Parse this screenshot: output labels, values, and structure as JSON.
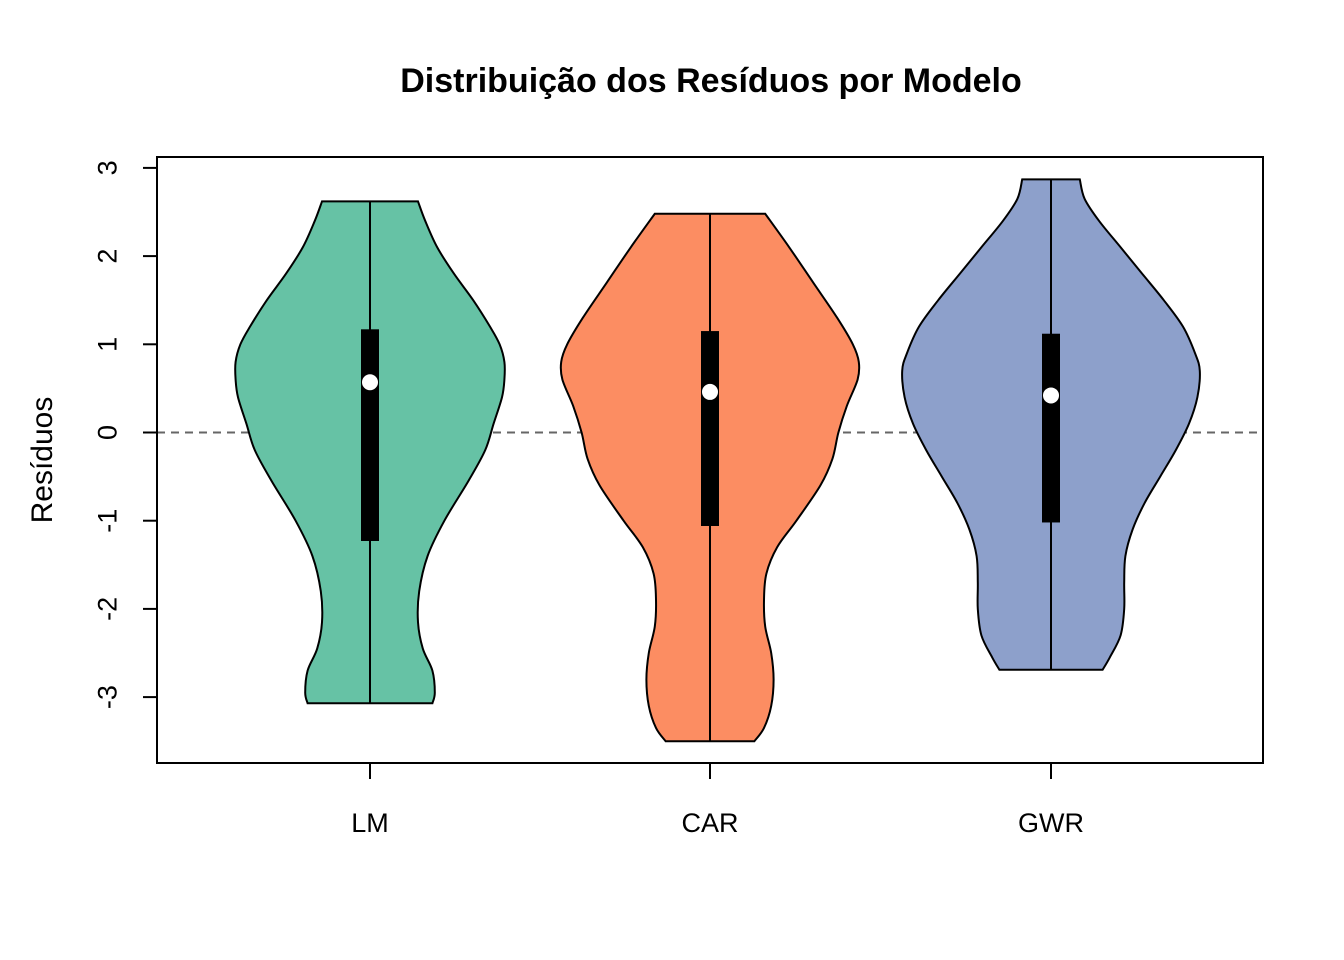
{
  "chart_data": {
    "type": "violin",
    "title": "Distribuição dos Resíduos por Modelo",
    "xlabel": "",
    "ylabel": "Resíduos",
    "categories": [
      "LM",
      "CAR",
      "GWR"
    ],
    "colors": [
      "#66c2a5",
      "#fc8d62",
      "#8da0cb"
    ],
    "ylim": [
      -3.75,
      3.13
    ],
    "yticks": [
      -3,
      -2,
      -1,
      0,
      1,
      2,
      3
    ],
    "ytick_labels": [
      "-3",
      "-2",
      "-1",
      "0",
      "1",
      "2",
      "3"
    ],
    "reference_line": {
      "y": 0,
      "style": "dashed",
      "color": "#666666"
    },
    "grid": false,
    "series": [
      {
        "category": "LM",
        "min": -3.07,
        "q1": -1.23,
        "median": 0.57,
        "q3": 1.17,
        "max": 2.62,
        "density_profile": [
          [
            -3.07,
            0.52
          ],
          [
            -2.95,
            0.54
          ],
          [
            -2.7,
            0.52
          ],
          [
            -2.45,
            0.44
          ],
          [
            -2.15,
            0.4
          ],
          [
            -1.8,
            0.41
          ],
          [
            -1.4,
            0.48
          ],
          [
            -1.0,
            0.62
          ],
          [
            -0.55,
            0.82
          ],
          [
            -0.2,
            0.96
          ],
          [
            0.1,
            1.03
          ],
          [
            0.4,
            1.1
          ],
          [
            0.6,
            1.12
          ],
          [
            0.8,
            1.12
          ],
          [
            1.0,
            1.08
          ],
          [
            1.2,
            1.0
          ],
          [
            1.5,
            0.86
          ],
          [
            1.8,
            0.7
          ],
          [
            2.1,
            0.56
          ],
          [
            2.4,
            0.46
          ],
          [
            2.62,
            0.4
          ]
        ]
      },
      {
        "category": "CAR",
        "min": -3.5,
        "q1": -1.06,
        "median": 0.46,
        "q3": 1.15,
        "max": 2.48,
        "density_profile": [
          [
            -3.5,
            0.37
          ],
          [
            -3.35,
            0.45
          ],
          [
            -3.1,
            0.51
          ],
          [
            -2.8,
            0.53
          ],
          [
            -2.5,
            0.51
          ],
          [
            -2.2,
            0.46
          ],
          [
            -1.9,
            0.45
          ],
          [
            -1.6,
            0.47
          ],
          [
            -1.3,
            0.56
          ],
          [
            -1.0,
            0.72
          ],
          [
            -0.6,
            0.92
          ],
          [
            -0.3,
            1.02
          ],
          [
            0.0,
            1.07
          ],
          [
            0.3,
            1.14
          ],
          [
            0.6,
            1.23
          ],
          [
            0.8,
            1.24
          ],
          [
            1.0,
            1.19
          ],
          [
            1.3,
            1.06
          ],
          [
            1.7,
            0.86
          ],
          [
            2.1,
            0.66
          ],
          [
            2.48,
            0.46
          ]
        ]
      },
      {
        "category": "GWR",
        "min": -2.69,
        "q1": -1.02,
        "median": 0.42,
        "q3": 1.12,
        "max": 2.87,
        "density_profile": [
          [
            -2.69,
            0.43
          ],
          [
            -2.55,
            0.49
          ],
          [
            -2.3,
            0.58
          ],
          [
            -2.0,
            0.61
          ],
          [
            -1.7,
            0.61
          ],
          [
            -1.4,
            0.62
          ],
          [
            -1.1,
            0.68
          ],
          [
            -0.8,
            0.78
          ],
          [
            -0.5,
            0.91
          ],
          [
            -0.2,
            1.04
          ],
          [
            0.1,
            1.15
          ],
          [
            0.4,
            1.22
          ],
          [
            0.7,
            1.24
          ],
          [
            0.9,
            1.2
          ],
          [
            1.2,
            1.1
          ],
          [
            1.5,
            0.94
          ],
          [
            1.8,
            0.76
          ],
          [
            2.1,
            0.58
          ],
          [
            2.4,
            0.4
          ],
          [
            2.65,
            0.28
          ],
          [
            2.87,
            0.24
          ]
        ]
      }
    ]
  }
}
